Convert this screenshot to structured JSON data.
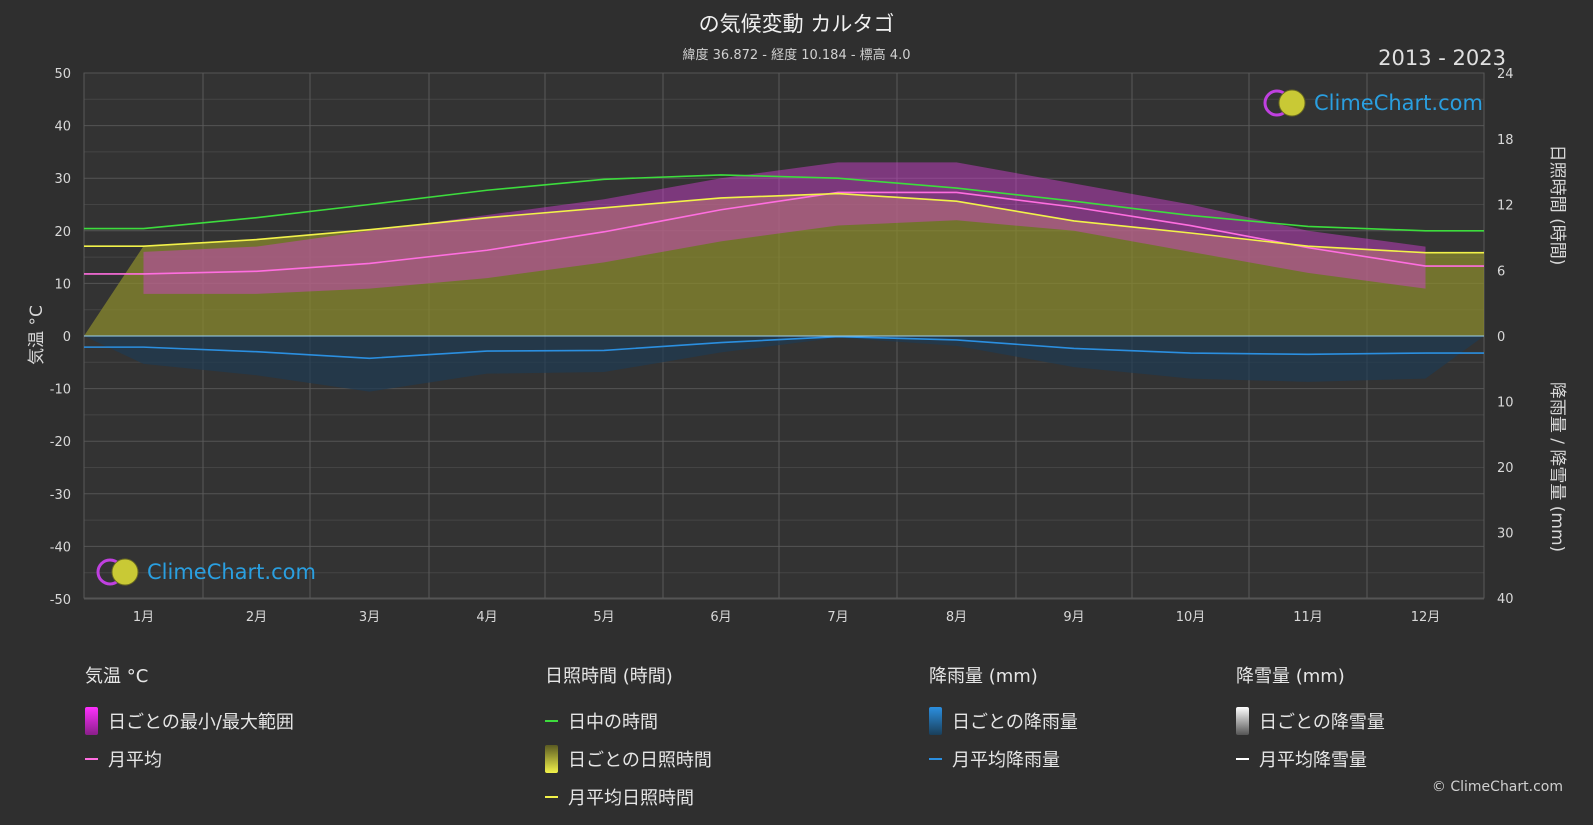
{
  "title": "の気候変動 カルタゴ",
  "subtitle": "緯度 36.872 - 経度 10.184 - 標高 4.0",
  "years": "2013 - 2023",
  "logo_text": "ClimeChart.com",
  "copyright": "© ClimeChart.com",
  "axes": {
    "left_title": "気温 °C",
    "right_top_title": "日照時間 (時間)",
    "right_bottom_title": "降雨量 / 降雪量 (mm)",
    "left_ticks": [
      "50",
      "40",
      "30",
      "20",
      "10",
      "0",
      "-10",
      "-20",
      "-30",
      "-40",
      "-50"
    ],
    "right_top_ticks": [
      "24",
      "18",
      "12",
      "6",
      "0"
    ],
    "right_bottom_ticks": [
      "10",
      "20",
      "30",
      "40"
    ]
  },
  "legend": {
    "temperature": {
      "header": "気温 °C",
      "range": "日ごとの最小/最大範囲",
      "avg": "月平均"
    },
    "sunshine": {
      "header": "日照時間 (時間)",
      "daylight": "日中の時間",
      "daily": "日ごとの日照時間",
      "avg": "月平均日照時間"
    },
    "rain": {
      "header": "降雨量 (mm)",
      "daily": "日ごとの降雨量",
      "avg": "月平均降雨量"
    },
    "snow": {
      "header": "降雪量 (mm)",
      "daily": "日ごとの降雪量",
      "avg": "月平均降雪量"
    }
  },
  "colors": {
    "daylight": "#3ddc3d",
    "sunshine_avg": "#f2f24a",
    "sunshine_fill": "#8a8a2e",
    "temp_avg": "#ff6ee0",
    "temp_range": "#d43fd4",
    "rain": "#2b8fe0",
    "snow": "#ffffff"
  },
  "chart_data": {
    "type": "line",
    "categories": [
      "1月",
      "2月",
      "3月",
      "4月",
      "5月",
      "6月",
      "7月",
      "8月",
      "9月",
      "10月",
      "11月",
      "12月"
    ],
    "temp_ylim": [
      -50,
      50
    ],
    "sun_ylim": [
      0,
      24
    ],
    "precip_ylim": [
      0,
      40
    ],
    "series": [
      {
        "name": "月平均",
        "axis": "temperature",
        "values": [
          11.8,
          12.3,
          13.8,
          16.3,
          19.8,
          24.0,
          27.3,
          27.3,
          24.5,
          21.0,
          16.8,
          13.3
        ]
      },
      {
        "name": "日中の時間",
        "axis": "sunshine",
        "values": [
          9.8,
          10.8,
          12.0,
          13.3,
          14.3,
          14.7,
          14.4,
          13.5,
          12.3,
          11.0,
          10.0,
          9.6
        ]
      },
      {
        "name": "月平均日照時間",
        "axis": "sunshine",
        "values": [
          8.2,
          8.8,
          9.7,
          10.8,
          11.7,
          12.6,
          13.0,
          12.3,
          10.5,
          9.4,
          8.2,
          7.6
        ]
      },
      {
        "name": "月平均降雨量",
        "axis": "precipitation",
        "values": [
          1.7,
          2.4,
          3.4,
          2.3,
          2.2,
          1.0,
          0.1,
          0.6,
          1.9,
          2.6,
          2.8,
          2.6
        ]
      },
      {
        "name": "月平均降雪量",
        "axis": "precipitation",
        "values": [
          0,
          0,
          0,
          0,
          0,
          0,
          0,
          0,
          0,
          0,
          0,
          0
        ]
      }
    ],
    "temp_range_band": {
      "min": [
        8,
        8,
        9,
        11,
        14,
        18,
        21,
        22,
        20,
        16,
        12,
        9
      ],
      "max": [
        16,
        17,
        20,
        23,
        26,
        30,
        33,
        33,
        29,
        25,
        20,
        17
      ]
    }
  }
}
